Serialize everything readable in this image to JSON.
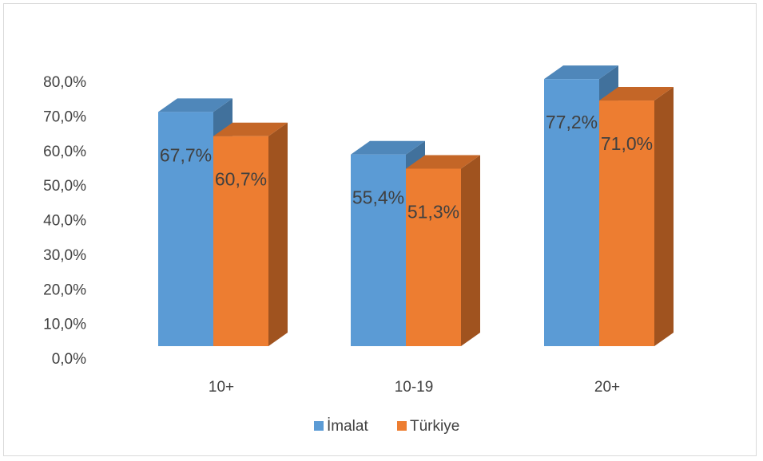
{
  "chart_data": {
    "type": "bar",
    "categories": [
      "10+",
      "10-19",
      "20+"
    ],
    "series": [
      {
        "name": "İmalat",
        "values": [
          67.7,
          55.4,
          77.2
        ],
        "labels": [
          "67,7%",
          "55,4%",
          "77,2%"
        ],
        "color": "#5b9bd5",
        "side_color": "#41719c",
        "top_color": "#4f87ba"
      },
      {
        "name": "Türkiye",
        "values": [
          60.7,
          51.3,
          71.0
        ],
        "labels": [
          "60,7%",
          "51,3%",
          "71,0%"
        ],
        "color": "#ed7d31",
        "side_color": "#a0531f",
        "top_color": "#c46627"
      }
    ],
    "y_ticks": [
      "0,0%",
      "10,0%",
      "20,0%",
      "30,0%",
      "40,0%",
      "50,0%",
      "60,0%",
      "70,0%",
      "80,0%"
    ],
    "ylim": [
      0,
      80
    ],
    "legend_position": "bottom",
    "grid": false,
    "three_d": true
  }
}
